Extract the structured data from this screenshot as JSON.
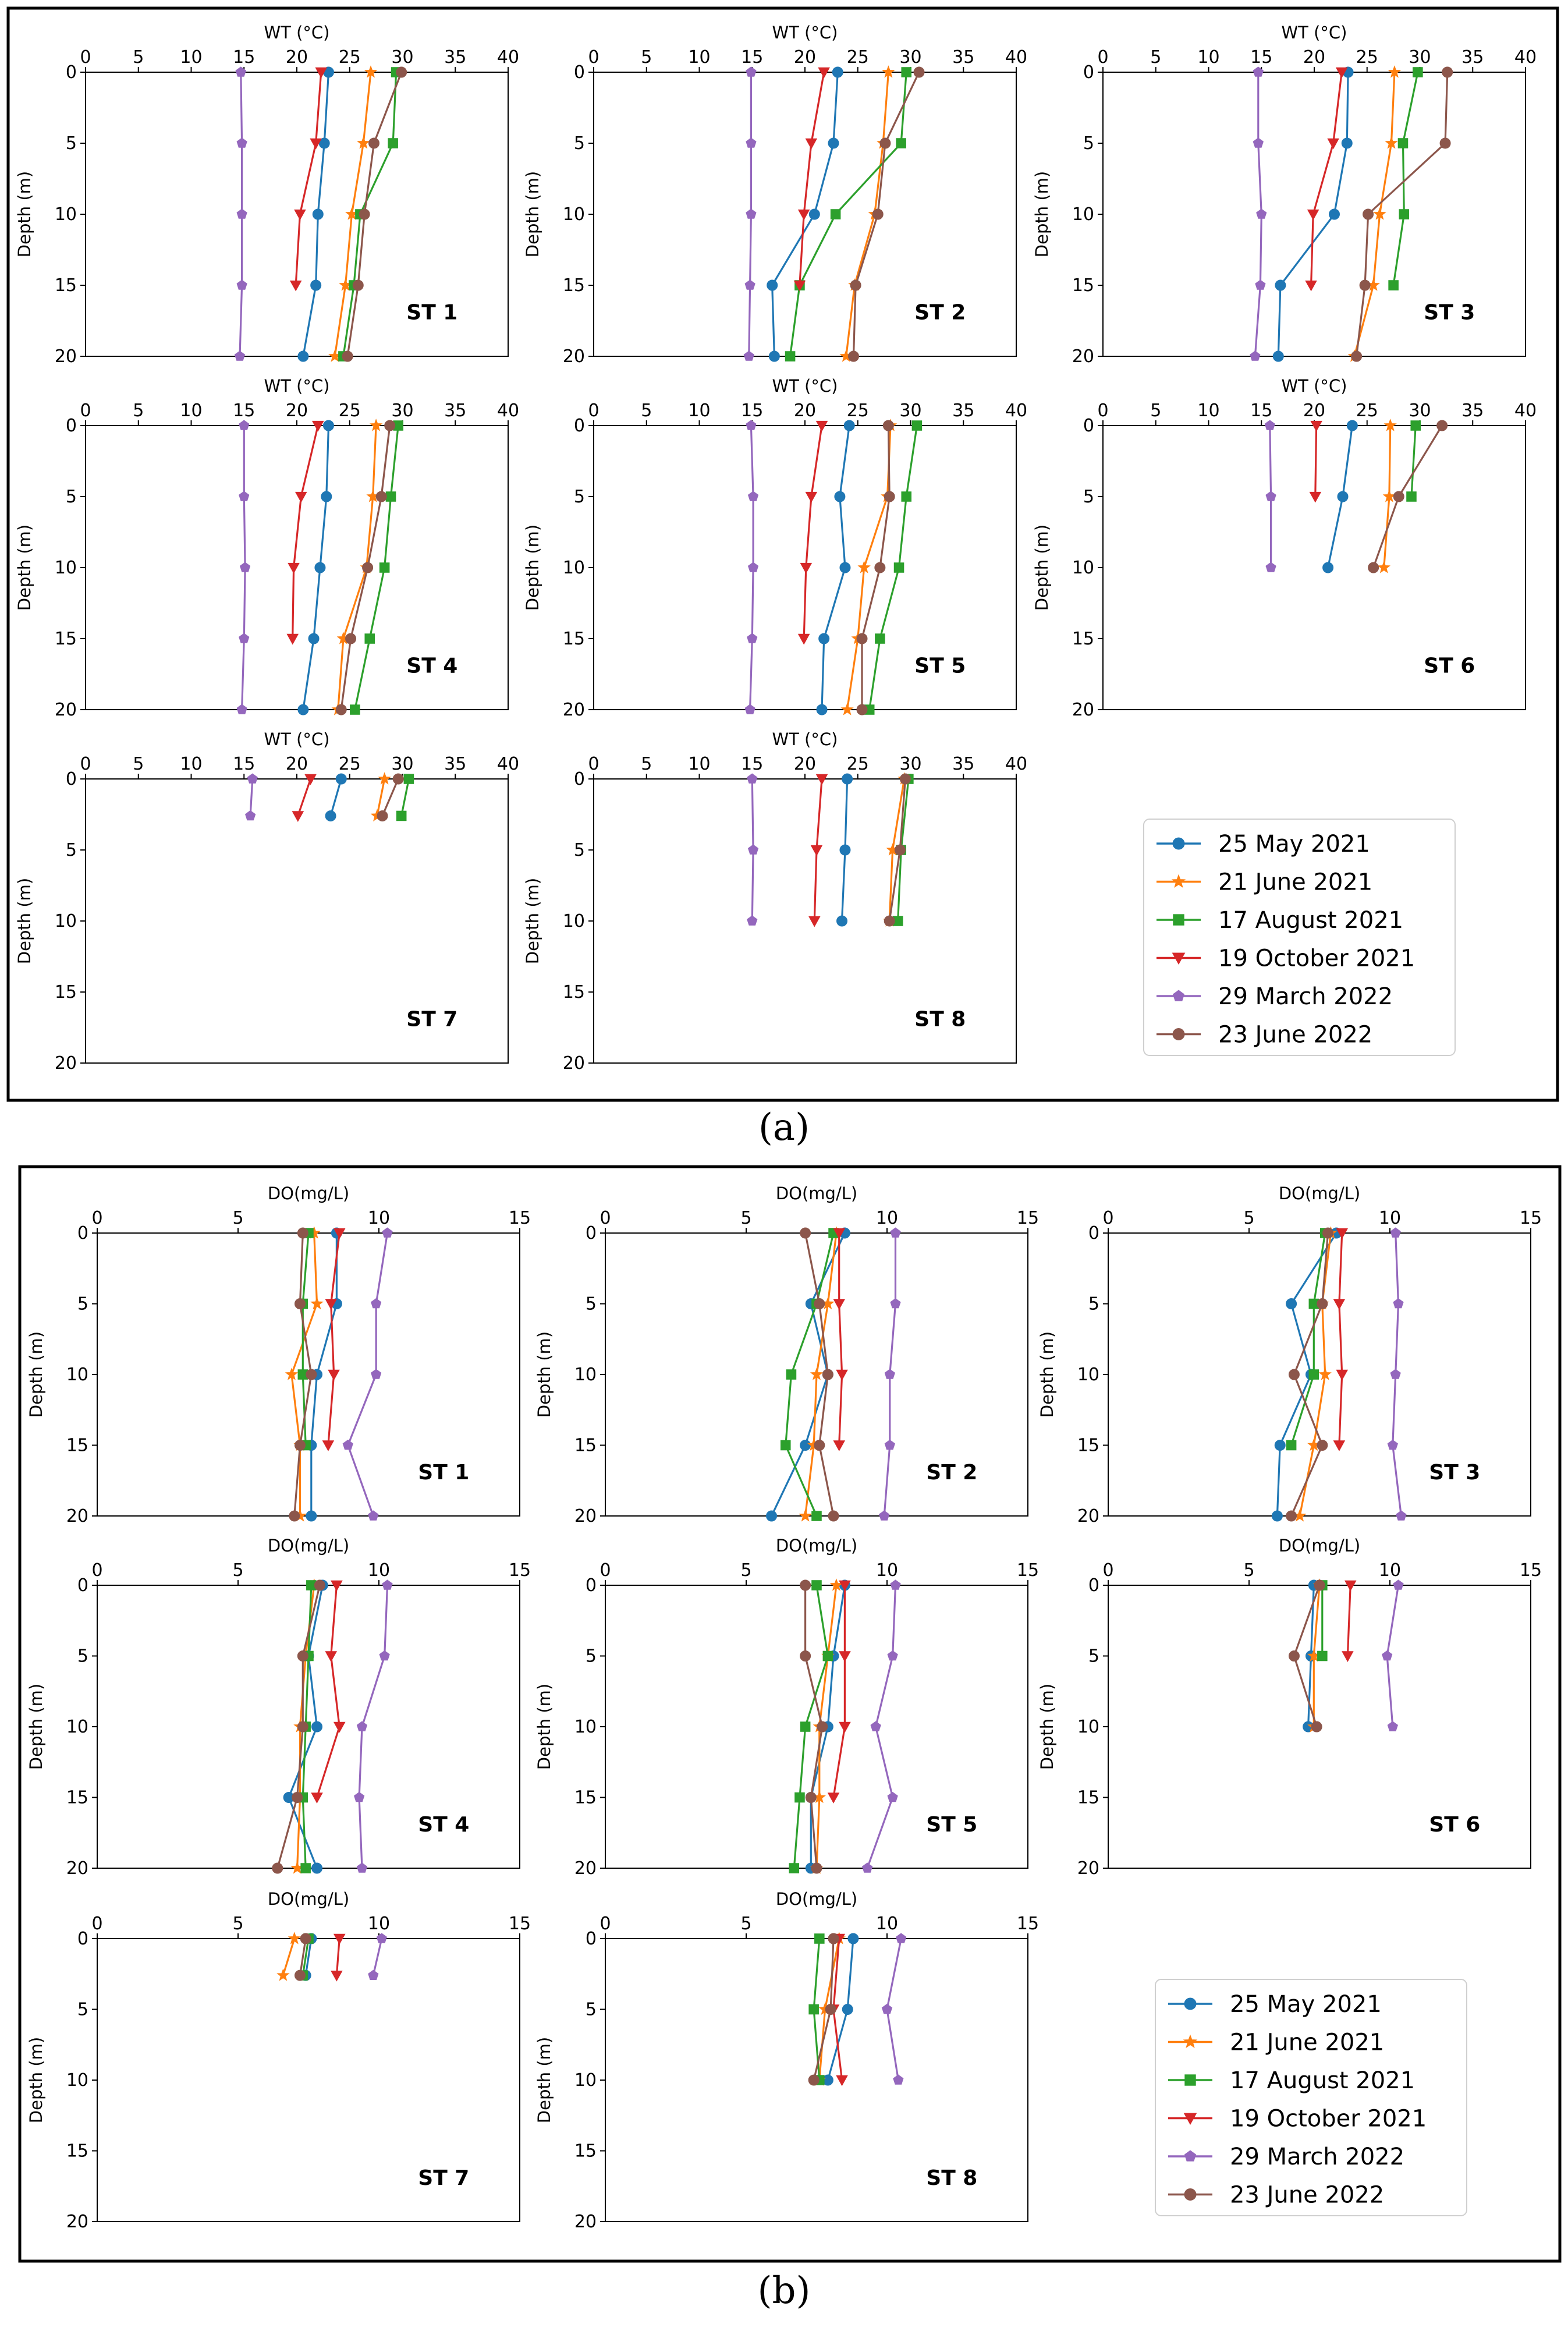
{
  "chart_data": [
    {
      "type": "line",
      "panel_label": "(a)",
      "xlabel": "WT (°C)",
      "ylabel": "Depth (m)",
      "xlim": [
        0,
        40
      ],
      "ylim": [
        20,
        0
      ],
      "xticks": [
        "0",
        "5",
        "10",
        "15",
        "20",
        "25",
        "30",
        "35",
        "40"
      ],
      "yticks": [
        "0",
        "5",
        "10",
        "15",
        "20"
      ],
      "series": [
        {
          "name": "25 May 2021",
          "color": "#1f77b4",
          "marker": "circle"
        },
        {
          "name": "21 June 2021",
          "color": "#ff7f0e",
          "marker": "star"
        },
        {
          "name": "17 August 2021",
          "color": "#2ca02c",
          "marker": "square"
        },
        {
          "name": "19 October 2021",
          "color": "#d62728",
          "marker": "triangle-down"
        },
        {
          "name": "29 March 2022",
          "color": "#9467bd",
          "marker": "pentagon"
        },
        {
          "name": "23 June 2022",
          "color": "#8c564b",
          "marker": "circle"
        }
      ],
      "stations": [
        {
          "label": "ST 1",
          "depths": [
            0,
            5,
            10,
            15,
            20
          ],
          "values": [
            [
              23,
              22.6,
              22,
              21.8,
              20.6
            ],
            [
              27,
              26.3,
              25.2,
              24.6,
              23.6
            ],
            [
              29.4,
              29.1,
              26,
              25.4,
              24.4
            ],
            [
              22.3,
              21.8,
              20.3,
              19.9,
              null
            ],
            [
              14.7,
              14.8,
              14.8,
              14.8,
              14.6
            ],
            [
              29.9,
              27.3,
              26.4,
              25.8,
              24.8
            ]
          ]
        },
        {
          "label": "ST 2",
          "depths": [
            0,
            5,
            10,
            15,
            20
          ],
          "values": [
            [
              23.1,
              22.7,
              20.9,
              16.9,
              17.1
            ],
            [
              27.9,
              27.4,
              26.6,
              24.7,
              23.9
            ],
            [
              29.6,
              29.1,
              22.9,
              19.5,
              18.6
            ],
            [
              21.8,
              20.6,
              19.9,
              19.5,
              null
            ],
            [
              14.9,
              14.9,
              14.9,
              14.8,
              14.7
            ],
            [
              30.8,
              27.6,
              26.9,
              24.8,
              24.6
            ]
          ]
        },
        {
          "label": "ST 3",
          "depths": [
            0,
            5,
            10,
            15,
            20
          ],
          "values": [
            [
              23.2,
              23.1,
              21.9,
              16.8,
              16.6
            ],
            [
              27.6,
              27.3,
              26.2,
              25.6,
              23.8
            ],
            [
              29.8,
              28.4,
              28.5,
              27.5,
              null
            ],
            [
              22.6,
              21.8,
              19.9,
              19.7,
              null
            ],
            [
              14.7,
              14.7,
              15,
              14.9,
              14.4
            ],
            [
              32.6,
              32.4,
              25.1,
              24.8,
              24
            ]
          ]
        },
        {
          "label": "ST 4",
          "depths": [
            0,
            5,
            10,
            15,
            20
          ],
          "values": [
            [
              23,
              22.8,
              22.2,
              21.6,
              20.6
            ],
            [
              27.5,
              27.2,
              26.6,
              24.4,
              23.9
            ],
            [
              29.6,
              28.9,
              28.3,
              26.9,
              25.5
            ],
            [
              22,
              20.4,
              19.7,
              19.6,
              null
            ],
            [
              15,
              15,
              15.1,
              15,
              14.8
            ],
            [
              28.8,
              28,
              26.7,
              25.1,
              24.2
            ]
          ]
        },
        {
          "label": "ST 5",
          "depths": [
            0,
            5,
            10,
            15,
            20
          ],
          "values": [
            [
              24.2,
              23.3,
              23.8,
              21.8,
              21.6
            ],
            [
              28.1,
              27.8,
              25.6,
              25,
              24
            ],
            [
              30.6,
              29.6,
              28.9,
              27.1,
              26.1
            ],
            [
              21.6,
              20.6,
              20.1,
              19.9,
              null
            ],
            [
              14.9,
              15.1,
              15.1,
              15,
              14.8
            ],
            [
              27.9,
              28,
              27.1,
              25.4,
              25.4
            ]
          ]
        },
        {
          "label": "ST 6",
          "depths": [
            0,
            5,
            10
          ],
          "values": [
            [
              23.6,
              22.7,
              21.3
            ],
            [
              27.2,
              27.1,
              26.6
            ],
            [
              29.6,
              29.2,
              null
            ],
            [
              20.2,
              20.1,
              null
            ],
            [
              15.8,
              15.9,
              15.9
            ],
            [
              32.1,
              28,
              25.6
            ]
          ]
        },
        {
          "label": "ST 7",
          "depths": [
            0,
            2.6
          ],
          "values": [
            [
              24.2,
              23.2
            ],
            [
              28.3,
              27.6
            ],
            [
              30.6,
              29.9
            ],
            [
              21.3,
              20.1
            ],
            [
              15.8,
              15.6
            ],
            [
              29.6,
              28.1
            ]
          ]
        },
        {
          "label": "ST 8",
          "depths": [
            0,
            5,
            10
          ],
          "values": [
            [
              24,
              23.8,
              23.5
            ],
            [
              29.4,
              28.3,
              28
            ],
            [
              29.8,
              29.1,
              28.8
            ],
            [
              21.6,
              21.1,
              20.9
            ],
            [
              15,
              15.1,
              15
            ],
            [
              29.5,
              29,
              28
            ]
          ]
        }
      ]
    },
    {
      "type": "line",
      "panel_label": "(b)",
      "xlabel": "DO(mg/L)",
      "ylabel": "Depth (m)",
      "xlim": [
        0,
        15
      ],
      "ylim": [
        20,
        0
      ],
      "xticks": [
        "0",
        "5",
        "10",
        "15"
      ],
      "yticks": [
        "0",
        "5",
        "10",
        "15",
        "20"
      ],
      "series": [
        {
          "name": "25 May 2021",
          "color": "#1f77b4",
          "marker": "circle"
        },
        {
          "name": "21 June 2021",
          "color": "#ff7f0e",
          "marker": "star"
        },
        {
          "name": "17 August 2021",
          "color": "#2ca02c",
          "marker": "square"
        },
        {
          "name": "19 October 2021",
          "color": "#d62728",
          "marker": "triangle-down"
        },
        {
          "name": "29 March 2022",
          "color": "#9467bd",
          "marker": "pentagon"
        },
        {
          "name": "23 June 2022",
          "color": "#8c564b",
          "marker": "circle"
        }
      ],
      "stations": [
        {
          "label": "ST 1",
          "depths": [
            0,
            5,
            10,
            15,
            20
          ],
          "values": [
            [
              8.5,
              8.5,
              7.8,
              7.6,
              7.6
            ],
            [
              7.7,
              7.8,
              6.9,
              7.2,
              7.2
            ],
            [
              7.5,
              7.3,
              7.3,
              7.4,
              null
            ],
            [
              8.6,
              8.3,
              8.4,
              8.2,
              null
            ],
            [
              10.3,
              9.9,
              9.9,
              8.9,
              9.8
            ],
            [
              7.3,
              7.2,
              7.6,
              7.2,
              7
            ]
          ]
        },
        {
          "label": "ST 2",
          "depths": [
            0,
            5,
            10,
            15,
            20
          ],
          "values": [
            [
              8.5,
              7.3,
              7.9,
              7.1,
              5.9
            ],
            [
              8.2,
              7.9,
              7.5,
              7.4,
              7.1
            ],
            [
              8.1,
              7.5,
              6.6,
              6.4,
              7.5
            ],
            [
              8.3,
              8.3,
              8.4,
              8.3,
              null
            ],
            [
              10.3,
              10.3,
              10.1,
              10.1,
              9.9
            ],
            [
              7.1,
              7.6,
              7.9,
              7.6,
              8.1
            ]
          ]
        },
        {
          "label": "ST 3",
          "depths": [
            0,
            5,
            10,
            15,
            20
          ],
          "values": [
            [
              8.1,
              6.5,
              7.2,
              6.1,
              6
            ],
            [
              7.9,
              7.6,
              7.7,
              7.3,
              6.8
            ],
            [
              7.7,
              7.3,
              7.3,
              6.5,
              null
            ],
            [
              8.3,
              8.2,
              8.3,
              8.2,
              null
            ],
            [
              10.2,
              10.3,
              10.2,
              10.1,
              10.4
            ],
            [
              7.8,
              7.6,
              6.6,
              7.6,
              6.5
            ]
          ]
        },
        {
          "label": "ST 4",
          "depths": [
            0,
            5,
            10,
            15,
            20
          ],
          "values": [
            [
              8,
              7.5,
              7.8,
              6.8,
              7.8
            ],
            [
              7.7,
              7.4,
              7.2,
              7.2,
              7.1
            ],
            [
              7.6,
              7.5,
              7.4,
              7.3,
              7.4
            ],
            [
              8.5,
              8.3,
              8.6,
              7.8,
              null
            ],
            [
              10.3,
              10.2,
              9.4,
              9.3,
              9.4
            ],
            [
              7.9,
              7.3,
              7.3,
              7.1,
              6.4
            ]
          ]
        },
        {
          "label": "ST 5",
          "depths": [
            0,
            5,
            10,
            15,
            20
          ],
          "values": [
            [
              8.5,
              8.1,
              7.9,
              7.3,
              7.3
            ],
            [
              8.2,
              7.9,
              7.6,
              7.6,
              7.5
            ],
            [
              7.5,
              7.9,
              7.1,
              6.9,
              6.7
            ],
            [
              8.5,
              8.5,
              8.5,
              8.1,
              null
            ],
            [
              10.3,
              10.2,
              9.6,
              10.2,
              9.3
            ],
            [
              7.1,
              7.1,
              7.7,
              7.3,
              7.5
            ]
          ]
        },
        {
          "label": "ST 6",
          "depths": [
            0,
            5,
            10
          ],
          "values": [
            [
              7.3,
              7.2,
              7.1
            ],
            [
              7.5,
              7.3,
              7.3
            ],
            [
              7.6,
              7.6,
              null
            ],
            [
              8.6,
              8.5,
              null
            ],
            [
              10.3,
              9.9,
              10.1
            ],
            [
              7.5,
              6.6,
              7.4
            ]
          ]
        },
        {
          "label": "ST 7",
          "depths": [
            0,
            2.6
          ],
          "values": [
            [
              7.6,
              7.4
            ],
            [
              7,
              6.6
            ],
            [
              7.5,
              7.3
            ],
            [
              8.6,
              8.5
            ],
            [
              10.1,
              9.8
            ],
            [
              7.4,
              7.2
            ]
          ]
        },
        {
          "label": "ST 8",
          "depths": [
            0,
            5,
            10
          ],
          "values": [
            [
              8.8,
              8.6,
              7.9
            ],
            [
              8.3,
              7.8,
              7.6
            ],
            [
              7.6,
              7.4,
              7.6
            ],
            [
              8.3,
              8.1,
              8.4
            ],
            [
              10.5,
              10,
              10.4
            ],
            [
              8.1,
              8,
              7.4
            ]
          ]
        }
      ]
    }
  ]
}
